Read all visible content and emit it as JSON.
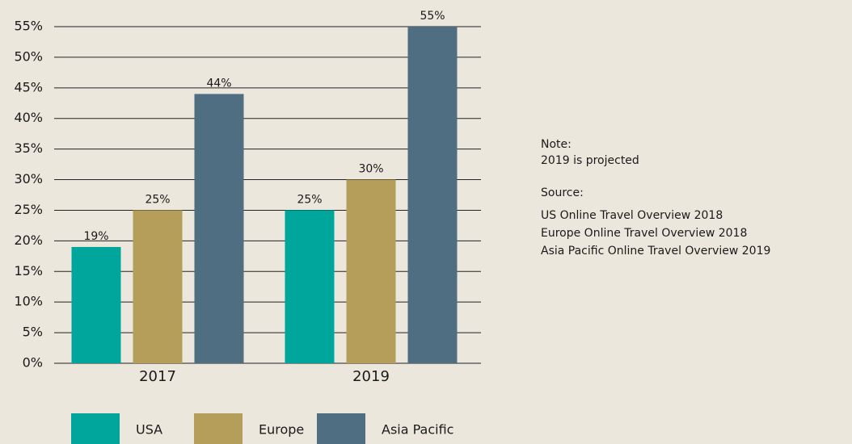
{
  "chart_data": {
    "type": "bar",
    "categories": [
      "2017",
      "2019"
    ],
    "series": [
      {
        "name": "USA",
        "color": "#00a69c",
        "values": [
          19,
          25
        ],
        "value_labels": [
          "19%",
          "25%"
        ]
      },
      {
        "name": "Europe",
        "color": "#b59e5a",
        "values": [
          25,
          30
        ],
        "value_labels": [
          "25%",
          "30%"
        ]
      },
      {
        "name": "Asia Pacific",
        "color": "#4f6e82",
        "values": [
          44,
          55
        ],
        "value_labels": [
          "44%",
          "55%"
        ]
      }
    ],
    "ylim": [
      0,
      55
    ],
    "yticks": [
      {
        "value": 0,
        "label": "0%"
      },
      {
        "value": 5,
        "label": "5%"
      },
      {
        "value": 10,
        "label": "10%"
      },
      {
        "value": 15,
        "label": "15%"
      },
      {
        "value": 20,
        "label": "20%"
      },
      {
        "value": 25,
        "label": "25%"
      },
      {
        "value": 30,
        "label": "30%"
      },
      {
        "value": 35,
        "label": "35%"
      },
      {
        "value": 40,
        "label": "40%"
      },
      {
        "value": 45,
        "label": "45%"
      },
      {
        "value": 50,
        "label": "50%"
      },
      {
        "value": 55,
        "label": "55%"
      }
    ],
    "grid": true,
    "annotations": [
      "Note:",
      "2019 is projected",
      "Source:",
      "US Online Travel Overview 2018",
      "Europe Online Travel Overview 2018",
      "Asia Pacific Online Travel Overview 2019"
    ]
  }
}
